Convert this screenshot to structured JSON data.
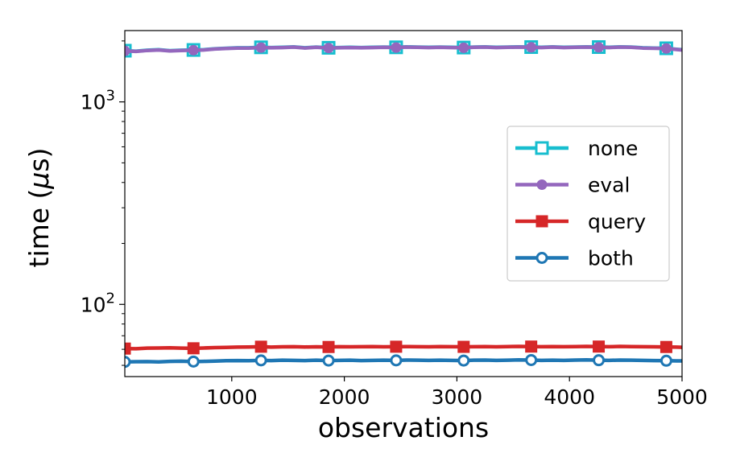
{
  "chart_data": {
    "type": "line",
    "xlabel": "observations",
    "ylabel_prefix": "time (",
    "ylabel_unit_symbol": "μ",
    "ylabel_suffix": "s)",
    "yscale": "log",
    "xlim": [
      50,
      5000
    ],
    "ylim": [
      44,
      2250
    ],
    "x_ticks": [
      1000,
      2000,
      3000,
      4000,
      5000
    ],
    "x_tick_labels": [
      "1000",
      "2000",
      "3000",
      "4000",
      "5000"
    ],
    "y_major_ticks": [
      100,
      1000
    ],
    "y_major_tick_labels": [
      {
        "base": "10",
        "exp": "2"
      },
      {
        "base": "10",
        "exp": "3"
      }
    ],
    "y_minor_ticks": [
      50,
      60,
      70,
      80,
      90,
      200,
      300,
      400,
      500,
      600,
      700,
      800,
      900,
      2000
    ],
    "legend_position": "center-right",
    "x": [
      50,
      150,
      250,
      350,
      450,
      550,
      660,
      750,
      850,
      950,
      1050,
      1150,
      1260,
      1350,
      1450,
      1550,
      1650,
      1750,
      1860,
      1950,
      2050,
      2150,
      2250,
      2350,
      2460,
      2550,
      2650,
      2750,
      2850,
      2950,
      3060,
      3150,
      3250,
      3350,
      3450,
      3550,
      3660,
      3750,
      3850,
      3950,
      4050,
      4150,
      4260,
      4350,
      4450,
      4550,
      4650,
      4750,
      4860,
      4950,
      5000
    ],
    "series": [
      {
        "name": "none",
        "color": "#17becf",
        "marker": "square-open",
        "values": [
          1790,
          1780,
          1800,
          1810,
          1790,
          1800,
          1805,
          1810,
          1830,
          1840,
          1850,
          1850,
          1860,
          1855,
          1860,
          1870,
          1850,
          1865,
          1850,
          1855,
          1860,
          1855,
          1860,
          1865,
          1860,
          1870,
          1865,
          1860,
          1865,
          1860,
          1855,
          1865,
          1870,
          1860,
          1865,
          1870,
          1865,
          1860,
          1870,
          1860,
          1865,
          1870,
          1865,
          1860,
          1870,
          1865,
          1850,
          1845,
          1840,
          1820,
          1810
        ]
      },
      {
        "name": "eval",
        "color": "#9467bd",
        "marker": "circle",
        "values": [
          1785,
          1775,
          1795,
          1805,
          1785,
          1795,
          1800,
          1805,
          1825,
          1835,
          1845,
          1845,
          1855,
          1850,
          1855,
          1865,
          1845,
          1860,
          1845,
          1850,
          1855,
          1850,
          1855,
          1860,
          1855,
          1865,
          1860,
          1855,
          1860,
          1855,
          1850,
          1860,
          1865,
          1855,
          1860,
          1865,
          1860,
          1855,
          1865,
          1855,
          1860,
          1865,
          1860,
          1855,
          1865,
          1860,
          1845,
          1840,
          1835,
          1815,
          1805
        ]
      },
      {
        "name": "query",
        "color": "#d62728",
        "marker": "square",
        "values": [
          60.5,
          60.4,
          60.8,
          60.9,
          61.0,
          60.8,
          60.7,
          60.9,
          61.2,
          61.3,
          61.5,
          61.6,
          61.8,
          61.5,
          61.7,
          61.8,
          61.6,
          61.7,
          61.6,
          61.8,
          61.7,
          61.8,
          61.9,
          61.7,
          61.8,
          61.9,
          61.8,
          61.7,
          61.9,
          61.8,
          61.7,
          61.8,
          61.9,
          61.7,
          61.9,
          62.0,
          61.9,
          61.8,
          61.9,
          61.8,
          61.9,
          62.0,
          61.9,
          61.8,
          62.0,
          61.9,
          61.8,
          61.7,
          61.6,
          61.5,
          61.4
        ]
      },
      {
        "name": "both",
        "color": "#1f77b4",
        "marker": "circle-open",
        "values": [
          52.0,
          52.1,
          52.2,
          52.0,
          52.3,
          52.4,
          52.2,
          52.3,
          52.5,
          52.7,
          52.8,
          52.7,
          52.9,
          52.8,
          53.0,
          52.9,
          52.8,
          53.0,
          52.8,
          52.9,
          53.0,
          52.8,
          52.9,
          53.0,
          52.9,
          53.1,
          53.0,
          52.9,
          53.0,
          52.9,
          52.8,
          53.0,
          53.1,
          52.9,
          53.0,
          53.2,
          53.1,
          52.9,
          53.0,
          52.9,
          53.1,
          53.2,
          53.0,
          52.9,
          53.1,
          53.0,
          52.9,
          52.8,
          52.7,
          52.6,
          52.6
        ]
      }
    ],
    "marker_x": [
      50,
      660,
      1260,
      1860,
      2460,
      3060,
      3660,
      4260,
      4860
    ]
  }
}
